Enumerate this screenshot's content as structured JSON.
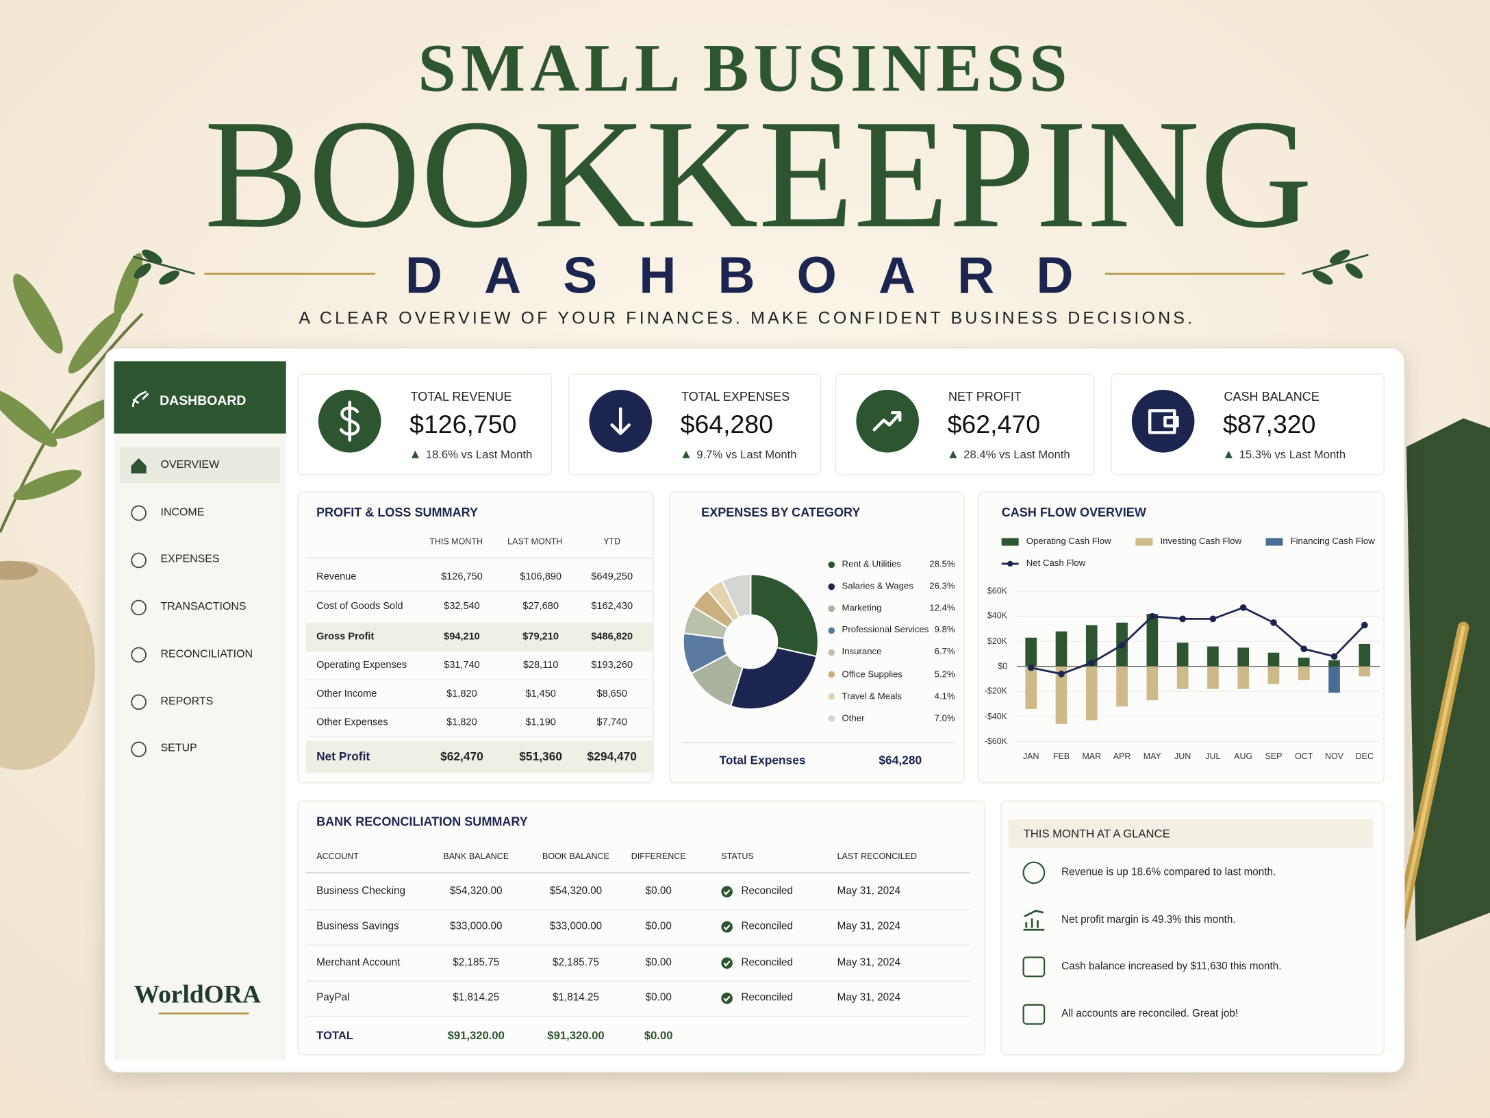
{
  "header": {
    "title_top": "SMALL BUSINESS",
    "title_main": "BOOKKEEPING",
    "title_sub": "DASHBOARD",
    "tagline": "A CLEAR OVERVIEW OF YOUR FINANCES. MAKE CONFIDENT BUSINESS DECISIONS."
  },
  "sidebar": {
    "heading": "DASHBOARD",
    "items": [
      "OVERVIEW",
      "INCOME",
      "EXPENSES",
      "TRANSACTIONS",
      "RECONCILIATION",
      "REPORTS",
      "SETUP"
    ],
    "brand": "WorldORA"
  },
  "kpis": [
    {
      "label": "TOTAL REVENUE",
      "value": "$126,750",
      "change": "18.6% vs Last Month"
    },
    {
      "label": "TOTAL EXPENSES",
      "value": "$64,280",
      "change": "9.7% vs Last Month"
    },
    {
      "label": "NET PROFIT",
      "value": "$62,470",
      "change": "28.4% vs Last Month"
    },
    {
      "label": "CASH BALANCE",
      "value": "$87,320",
      "change": "15.3% vs Last Month"
    }
  ],
  "profit_loss": {
    "title": "PROFIT & LOSS SUMMARY",
    "columns": [
      "THIS MONTH",
      "LAST MONTH",
      "YTD"
    ],
    "rows": [
      [
        "Revenue",
        "$126,750",
        "$106,890",
        "$649,250"
      ],
      [
        "Cost of Goods Sold",
        "$32,540",
        "$27,680",
        "$162,430"
      ],
      [
        "Gross Profit",
        "$94,210",
        "$79,210",
        "$486,820"
      ],
      [
        "Operating Expenses",
        "$31,740",
        "$28,110",
        "$193,260"
      ],
      [
        "Other Income",
        "$1,820",
        "$1,450",
        "$8,650"
      ],
      [
        "Other Expenses",
        "$1,820",
        "$1,190",
        "$7,740"
      ],
      [
        "Net Profit",
        "$62,470",
        "$51,360",
        "$294,470"
      ]
    ]
  },
  "chart_data": [
    {
      "type": "pie",
      "title": "EXPENSES BY CATEGORY",
      "categories": [
        "Rent & Utilities",
        "Salaries & Wages",
        "Marketing",
        "Professional Services",
        "Insurance",
        "Office Supplies",
        "Travel & Meals",
        "Other"
      ],
      "values": [
        28.5,
        26.3,
        12.4,
        9.8,
        6.7,
        5.2,
        4.1,
        7.0
      ],
      "value_labels": [
        "28.5%",
        "26.3%",
        "12.4%",
        "9.8%",
        "6.7%",
        "5.2%",
        "4.1%",
        "7.0%"
      ],
      "colors": [
        "#2c5530",
        "#1b2550",
        "#a9b29c",
        "#5b7aa0",
        "#b9c1ab",
        "#c9b07e",
        "#e3d3ae",
        "#d5d6d3"
      ],
      "total_label": "Total Expenses",
      "total_value": "$64,280"
    },
    {
      "type": "bar",
      "title": "CASH FLOW OVERVIEW",
      "categories": [
        "JAN",
        "FEB",
        "MAR",
        "APR",
        "MAY",
        "JUN",
        "JUL",
        "AUG",
        "SEP",
        "OCT",
        "NOV",
        "DEC"
      ],
      "series": [
        {
          "name": "Operating Cash Flow",
          "color": "#2c5530",
          "values": [
            23000,
            28000,
            33000,
            35000,
            42000,
            19000,
            16000,
            15000,
            11000,
            7000,
            5000,
            18000
          ]
        },
        {
          "name": "Investing Cash Flow",
          "color": "#cdb98a",
          "values": [
            -34000,
            -46000,
            -43000,
            -32000,
            -27000,
            -18000,
            -18000,
            -18000,
            -14000,
            -11000,
            0,
            -8000
          ]
        },
        {
          "name": "Financing Cash Flow",
          "color": "#4a6d96",
          "values": [
            0,
            0,
            0,
            0,
            0,
            0,
            0,
            0,
            0,
            0,
            -21000,
            0
          ]
        },
        {
          "name": "Net Cash Flow",
          "type": "line",
          "color": "#1b2550",
          "values": [
            -1000,
            -6000,
            3000,
            17000,
            40000,
            38000,
            38000,
            47000,
            35000,
            14000,
            8000,
            33000
          ]
        }
      ],
      "ylim": [
        -60000,
        60000
      ],
      "yticks": [
        {
          "value": -60000,
          "label": "-$60K"
        },
        {
          "value": -40000,
          "label": "-$40K"
        },
        {
          "value": -20000,
          "label": "-$20K"
        },
        {
          "value": 0,
          "label": "$0"
        },
        {
          "value": 20000,
          "label": "$20K"
        },
        {
          "value": 40000,
          "label": "$40K"
        },
        {
          "value": 60000,
          "label": "$60K"
        }
      ],
      "grid": true
    }
  ],
  "bank": {
    "title": "BANK RECONCILIATION SUMMARY",
    "columns": [
      "ACCOUNT",
      "BANK BALANCE",
      "BOOK BALANCE",
      "DIFFERENCE",
      "STATUS",
      "LAST RECONCILED"
    ],
    "rows": [
      [
        "Business Checking",
        "$54,320.00",
        "$54,320.00",
        "$0.00",
        "Reconciled",
        "May 31, 2024"
      ],
      [
        "Business Savings",
        "$33,000.00",
        "$33,000.00",
        "$0.00",
        "Reconciled",
        "May 31, 2024"
      ],
      [
        "Merchant Account",
        "$2,185.75",
        "$2,185.75",
        "$0.00",
        "Reconciled",
        "May 31, 2024"
      ],
      [
        "PayPal",
        "$1,814.25",
        "$1,814.25",
        "$0.00",
        "Reconciled",
        "May 31, 2024"
      ]
    ],
    "total": [
      "TOTAL",
      "$91,320.00",
      "$91,320.00",
      "$0.00"
    ]
  },
  "glance": {
    "title": "THIS MONTH AT A GLANCE",
    "items": [
      "Revenue is up 18.6% compared to last month.",
      "Net profit margin is 49.3% this month.",
      "Cash balance increased by $11,630 this month.",
      "All accounts are reconciled. Great job!"
    ]
  }
}
